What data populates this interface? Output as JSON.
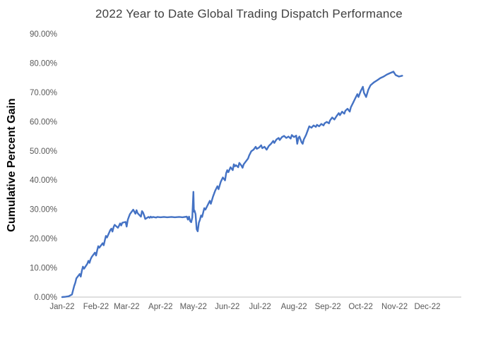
{
  "accent_color": "#4472C4",
  "axis_line_color": "#bfbfbf",
  "tick_label_color": "#595959",
  "title_color": "#404040",
  "chart_data": {
    "type": "line",
    "title": "2022 Year to Date Global Trading Dispatch Performance",
    "xlabel": "",
    "ylabel": "Cumulative Percent Gain",
    "ylim": [
      0,
      90
    ],
    "grid": false,
    "legend": "none",
    "y_ticks": [
      {
        "value": 0,
        "label": "0.00%"
      },
      {
        "value": 10,
        "label": "10.00%"
      },
      {
        "value": 20,
        "label": "20.00%"
      },
      {
        "value": 30,
        "label": "30.00%"
      },
      {
        "value": 40,
        "label": "40.00%"
      },
      {
        "value": 50,
        "label": "50.00%"
      },
      {
        "value": 60,
        "label": "60.00%"
      },
      {
        "value": 70,
        "label": "70.00%"
      },
      {
        "value": 80,
        "label": "80.00%"
      },
      {
        "value": 90,
        "label": "90.00%"
      }
    ],
    "x_ticks": [
      {
        "day": 0,
        "label": "Jan-22"
      },
      {
        "day": 31,
        "label": "Feb-22"
      },
      {
        "day": 59,
        "label": "Mar-22"
      },
      {
        "day": 90,
        "label": "Apr-22"
      },
      {
        "day": 120,
        "label": "May-22"
      },
      {
        "day": 151,
        "label": "Jun-22"
      },
      {
        "day": 181,
        "label": "Jul-22"
      },
      {
        "day": 212,
        "label": "Aug-22"
      },
      {
        "day": 243,
        "label": "Sep-22"
      },
      {
        "day": 273,
        "label": "Oct-22"
      },
      {
        "day": 304,
        "label": "Nov-22"
      },
      {
        "day": 334,
        "label": "Dec-22"
      }
    ],
    "x_domain_days": [
      0,
      365
    ],
    "series": [
      {
        "name": "Cumulative Percent Gain",
        "color": "#4472C4",
        "points": [
          [
            0,
            0
          ],
          [
            3,
            0.1
          ],
          [
            6,
            0.3
          ],
          [
            9,
            0.9
          ],
          [
            10,
            2.4
          ],
          [
            11,
            3.8
          ],
          [
            12,
            4.9
          ],
          [
            13,
            6.4
          ],
          [
            16,
            7.9
          ],
          [
            17,
            7.0
          ],
          [
            18,
            9.0
          ],
          [
            19,
            10.4
          ],
          [
            20,
            9.7
          ],
          [
            23,
            11.4
          ],
          [
            24,
            12.4
          ],
          [
            25,
            11.7
          ],
          [
            26,
            12.9
          ],
          [
            27,
            13.7
          ],
          [
            30,
            15.2
          ],
          [
            31,
            14.2
          ],
          [
            32,
            15.9
          ],
          [
            33,
            17.4
          ],
          [
            34,
            16.9
          ],
          [
            37,
            18.4
          ],
          [
            38,
            17.7
          ],
          [
            39,
            19.4
          ],
          [
            40,
            20.9
          ],
          [
            41,
            20.4
          ],
          [
            44,
            22.9
          ],
          [
            45,
            23.4
          ],
          [
            46,
            22.4
          ],
          [
            47,
            23.9
          ],
          [
            48,
            24.7
          ],
          [
            51,
            23.7
          ],
          [
            52,
            24.4
          ],
          [
            53,
            25.2
          ],
          [
            54,
            24.5
          ],
          [
            55,
            25.4
          ],
          [
            58,
            25.7
          ],
          [
            59,
            24.1
          ],
          [
            60,
            26.4
          ],
          [
            61,
            27.4
          ],
          [
            62,
            28.4
          ],
          [
            65,
            29.9
          ],
          [
            66,
            29.2
          ],
          [
            67,
            28.5
          ],
          [
            68,
            29.7
          ],
          [
            69,
            28.7
          ],
          [
            72,
            27.5
          ],
          [
            73,
            29.4
          ],
          [
            74,
            28.9
          ],
          [
            75,
            27.9
          ],
          [
            76,
            26.7
          ],
          [
            79,
            27.4
          ],
          [
            80,
            27.1
          ],
          [
            81,
            27.5
          ],
          [
            82,
            27.2
          ],
          [
            83,
            27.4
          ],
          [
            86,
            27.2
          ],
          [
            87,
            27.4
          ],
          [
            90,
            27.3
          ],
          [
            93,
            27.4
          ],
          [
            96,
            27.3
          ],
          [
            100,
            27.4
          ],
          [
            103,
            27.3
          ],
          [
            107,
            27.4
          ],
          [
            110,
            27.3
          ],
          [
            114,
            27.5
          ],
          [
            115,
            26.5
          ],
          [
            116,
            27.5
          ],
          [
            117,
            26.0
          ],
          [
            118,
            25.6
          ],
          [
            119,
            27.2
          ],
          [
            120,
            36.0
          ],
          [
            120.5,
            29.2
          ],
          [
            121,
            29.6
          ],
          [
            122,
            28.4
          ],
          [
            123,
            23.2
          ],
          [
            124,
            22.5
          ],
          [
            125,
            25.4
          ],
          [
            126,
            26.4
          ],
          [
            127,
            27.9
          ],
          [
            128,
            27.4
          ],
          [
            130,
            30.4
          ],
          [
            131,
            29.9
          ],
          [
            133,
            31.4
          ],
          [
            135,
            32.9
          ],
          [
            136,
            31.9
          ],
          [
            138,
            34.4
          ],
          [
            140,
            36.4
          ],
          [
            142,
            37.9
          ],
          [
            143,
            36.9
          ],
          [
            145,
            39.4
          ],
          [
            147,
            40.9
          ],
          [
            149,
            39.9
          ],
          [
            150,
            42.4
          ],
          [
            151,
            43.4
          ],
          [
            152,
            42.7
          ],
          [
            154,
            44.4
          ],
          [
            156,
            43.4
          ],
          [
            157,
            45.4
          ],
          [
            158,
            44.7
          ],
          [
            159,
            45.1
          ],
          [
            161,
            44.4
          ],
          [
            162,
            45.9
          ],
          [
            164,
            44.9
          ],
          [
            165,
            44.2
          ],
          [
            166,
            45.4
          ],
          [
            168,
            46.4
          ],
          [
            170,
            47.4
          ],
          [
            171,
            48.4
          ],
          [
            173,
            49.9
          ],
          [
            175,
            50.4
          ],
          [
            177,
            51.4
          ],
          [
            178,
            50.7
          ],
          [
            180,
            51.1
          ],
          [
            182,
            51.9
          ],
          [
            183,
            50.9
          ],
          [
            185,
            51.4
          ],
          [
            187,
            50.4
          ],
          [
            189,
            51.7
          ],
          [
            191,
            52.4
          ],
          [
            193,
            53.4
          ],
          [
            194,
            52.7
          ],
          [
            196,
            53.9
          ],
          [
            198,
            54.4
          ],
          [
            199,
            53.7
          ],
          [
            201,
            54.7
          ],
          [
            203,
            55.1
          ],
          [
            205,
            54.4
          ],
          [
            207,
            54.9
          ],
          [
            209,
            54.2
          ],
          [
            210,
            55.4
          ],
          [
            212,
            54.7
          ],
          [
            214,
            55.2
          ],
          [
            215,
            52.4
          ],
          [
            216,
            54.4
          ],
          [
            217,
            54.9
          ],
          [
            219,
            52.9
          ],
          [
            220,
            52.4
          ],
          [
            221,
            53.9
          ],
          [
            223,
            55.4
          ],
          [
            225,
            57.4
          ],
          [
            226,
            58.4
          ],
          [
            228,
            57.9
          ],
          [
            230,
            58.7
          ],
          [
            232,
            58.2
          ],
          [
            233,
            58.9
          ],
          [
            235,
            58.4
          ],
          [
            237,
            59.2
          ],
          [
            239,
            58.7
          ],
          [
            240,
            59.4
          ],
          [
            242,
            59.9
          ],
          [
            244,
            59.4
          ],
          [
            245,
            60.4
          ],
          [
            247,
            61.4
          ],
          [
            249,
            60.7
          ],
          [
            251,
            61.9
          ],
          [
            253,
            62.9
          ],
          [
            254,
            62.2
          ],
          [
            256,
            63.4
          ],
          [
            258,
            62.7
          ],
          [
            259,
            63.7
          ],
          [
            261,
            64.4
          ],
          [
            263,
            63.4
          ],
          [
            264,
            64.9
          ],
          [
            266,
            66.4
          ],
          [
            268,
            67.9
          ],
          [
            270,
            69.4
          ],
          [
            271,
            68.4
          ],
          [
            273,
            70.4
          ],
          [
            275,
            71.9
          ],
          [
            276,
            69.9
          ],
          [
            278,
            68.4
          ],
          [
            280,
            70.9
          ],
          [
            282,
            72.4
          ],
          [
            285,
            73.4
          ],
          [
            288,
            74.1
          ],
          [
            291,
            74.9
          ],
          [
            294,
            75.4
          ],
          [
            297,
            76.1
          ],
          [
            300,
            76.6
          ],
          [
            303,
            77.1
          ],
          [
            305,
            75.9
          ],
          [
            308,
            75.4
          ],
          [
            311,
            75.7
          ]
        ]
      }
    ]
  }
}
